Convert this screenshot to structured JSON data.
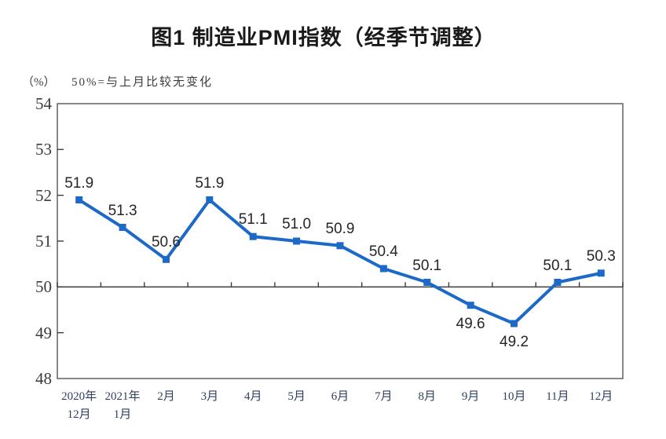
{
  "chart_data": {
    "type": "line",
    "title": "图1 制造业PMI指数（经季节调整）",
    "unit_label": "（%）",
    "note": "50%=与上月比较无变化",
    "categories": [
      "2020年\n12月",
      "2021年\n1月",
      "2月",
      "3月",
      "4月",
      "5月",
      "6月",
      "7月",
      "8月",
      "9月",
      "10月",
      "11月",
      "12月"
    ],
    "values": [
      51.9,
      51.3,
      50.6,
      51.9,
      51.1,
      51.0,
      50.9,
      50.4,
      50.1,
      49.6,
      49.2,
      50.1,
      50.3
    ],
    "value_labels": [
      "51.9",
      "51.3",
      "50.6",
      "51.9",
      "51.1",
      "51.0",
      "50.9",
      "50.4",
      "50.1",
      "49.6",
      "49.2",
      "50.1",
      "50.3"
    ],
    "label_below_indices": [
      9,
      10
    ],
    "ylim": [
      48,
      54
    ],
    "yticks": [
      48,
      49,
      50,
      51,
      52,
      53,
      54
    ],
    "reference_line": 50,
    "line_color": "#1c69c8",
    "marker": "square",
    "grid": "off",
    "legend": "none"
  }
}
